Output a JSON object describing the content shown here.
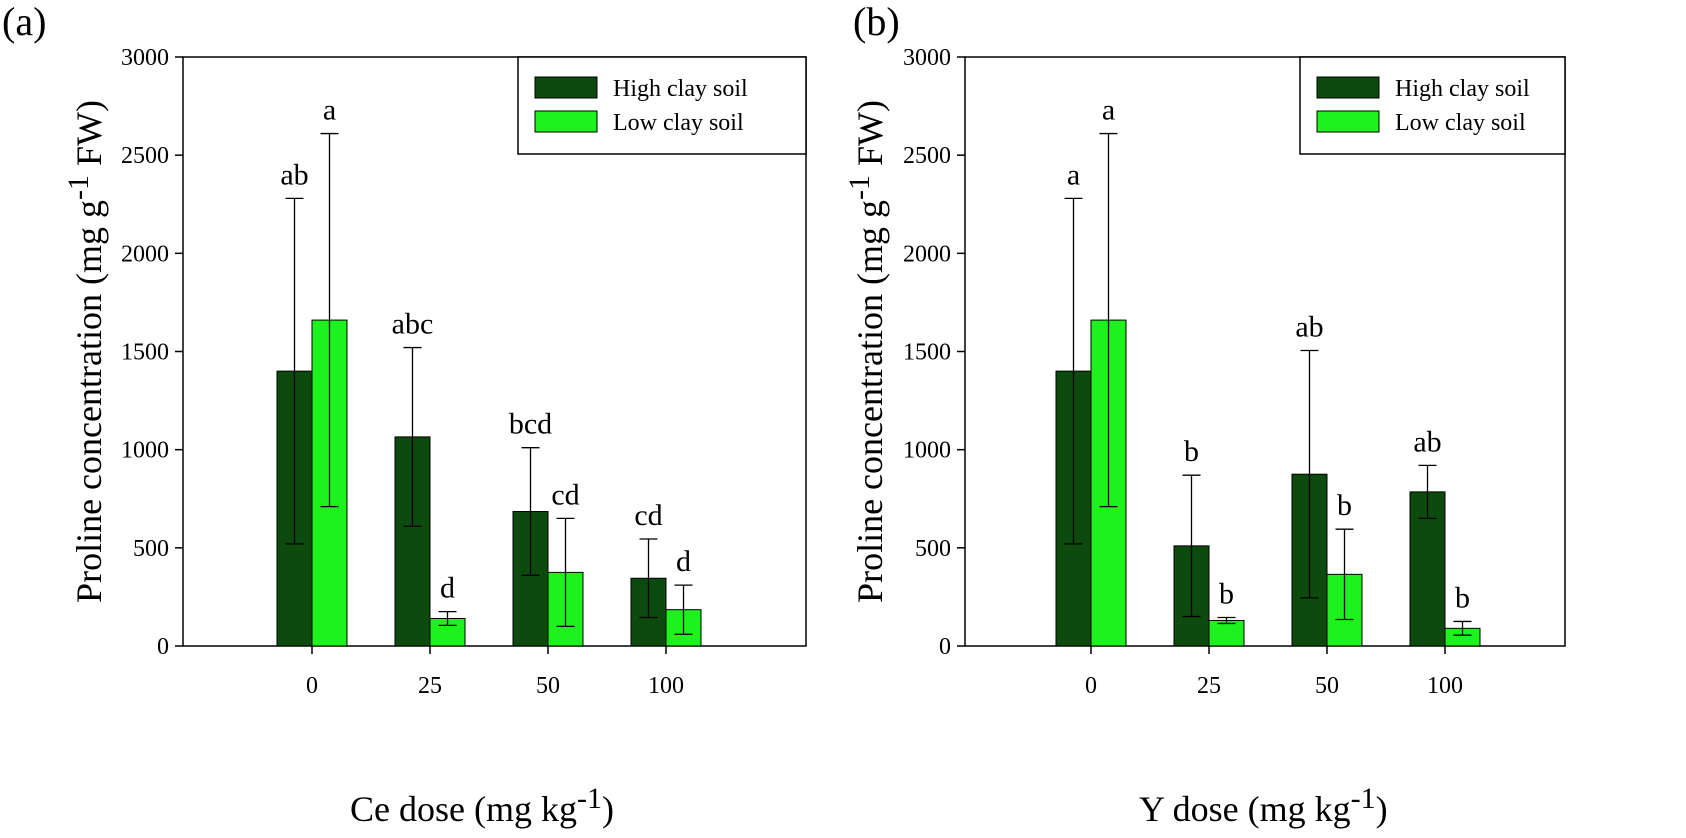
{
  "colors": {
    "high_clay": "#0d4a0d",
    "low_clay": "#1ef21e",
    "axis": "#000000"
  },
  "chart_data": [
    {
      "panel_label": "(a)",
      "type": "bar",
      "xlabel_main": "Ce dose (mg kg",
      "xlabel_sup": "-1",
      "xlabel_end": ")",
      "ylabel_main": "Proline concentration (mg g",
      "ylabel_sup": "-1",
      "ylabel_end": " FW)",
      "ylim": [
        0,
        3000
      ],
      "yticks": [
        "0",
        "500",
        "1000",
        "1500",
        "2000",
        "2500",
        "3000"
      ],
      "categories": [
        "0",
        "25",
        "50",
        "100"
      ],
      "legend_position": "top-right",
      "series": [
        {
          "name": "High clay soil",
          "values": [
            1400,
            1065,
            685,
            345
          ],
          "errors": [
            880,
            455,
            325,
            200
          ],
          "letters": [
            "ab",
            "abc",
            "bcd",
            "cd"
          ]
        },
        {
          "name": "Low clay soil",
          "values": [
            1660,
            140,
            375,
            185
          ],
          "errors": [
            950,
            35,
            275,
            125
          ],
          "letters": [
            "a",
            "d",
            "cd",
            "d"
          ]
        }
      ]
    },
    {
      "panel_label": "(b)",
      "type": "bar",
      "xlabel_main": "Y dose (mg kg",
      "xlabel_sup": "-1",
      "xlabel_end": ")",
      "ylabel_main": "Proline concentration (mg g",
      "ylabel_sup": "-1",
      "ylabel_end": " FW)",
      "ylim": [
        0,
        3000
      ],
      "yticks": [
        "0",
        "500",
        "1000",
        "1500",
        "2000",
        "2500",
        "3000"
      ],
      "categories": [
        "0",
        "25",
        "50",
        "100"
      ],
      "legend_position": "top-right",
      "series": [
        {
          "name": "High clay soil",
          "values": [
            1400,
            510,
            875,
            785
          ],
          "errors": [
            880,
            360,
            630,
            135
          ],
          "letters": [
            "a",
            "b",
            "ab",
            "ab"
          ]
        },
        {
          "name": "Low clay soil",
          "values": [
            1660,
            130,
            365,
            90
          ],
          "errors": [
            950,
            15,
            230,
            35
          ],
          "letters": [
            "a",
            "b",
            "b",
            "b"
          ]
        }
      ]
    }
  ]
}
